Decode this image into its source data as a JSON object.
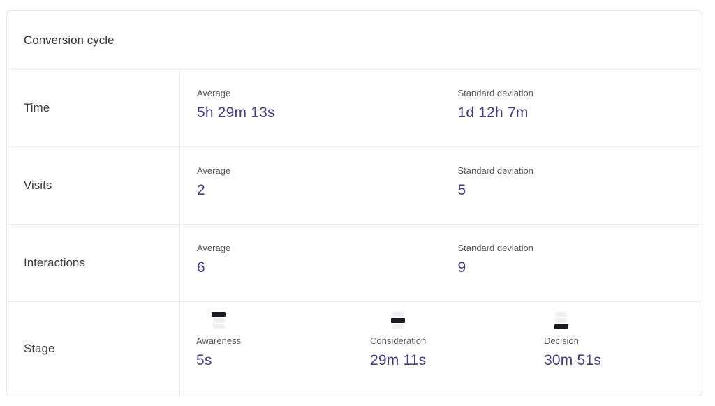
{
  "card": {
    "title": "Conversion cycle",
    "rows": [
      {
        "label": "Time",
        "cells": [
          {
            "label": "Average",
            "value": "5h 29m 13s"
          },
          {
            "label": "Standard deviation",
            "value": "1d 12h 7m"
          }
        ]
      },
      {
        "label": "Visits",
        "cells": [
          {
            "label": "Average",
            "value": "2"
          },
          {
            "label": "Standard deviation",
            "value": "5"
          }
        ]
      },
      {
        "label": "Interactions",
        "cells": [
          {
            "label": "Average",
            "value": "6"
          },
          {
            "label": "Standard deviation",
            "value": "9"
          }
        ]
      }
    ],
    "stage_row": {
      "label": "Stage",
      "stages": [
        {
          "name": "Awareness",
          "value": "5s",
          "active_bar": 0,
          "icon": "funnel-top-stage-icon"
        },
        {
          "name": "Consideration",
          "value": "29m 11s",
          "active_bar": 1,
          "icon": "funnel-middle-stage-icon"
        },
        {
          "name": "Decision",
          "value": "30m 51s",
          "active_bar": 2,
          "icon": "funnel-bottom-stage-icon"
        }
      ]
    }
  },
  "colors": {
    "value_text": "#443f7e",
    "muted_label": "#55565e",
    "heading_text": "#32333b",
    "border": "#ebebef",
    "icon_active": "#1b1b22",
    "icon_inactive": "#f0f0f2"
  }
}
